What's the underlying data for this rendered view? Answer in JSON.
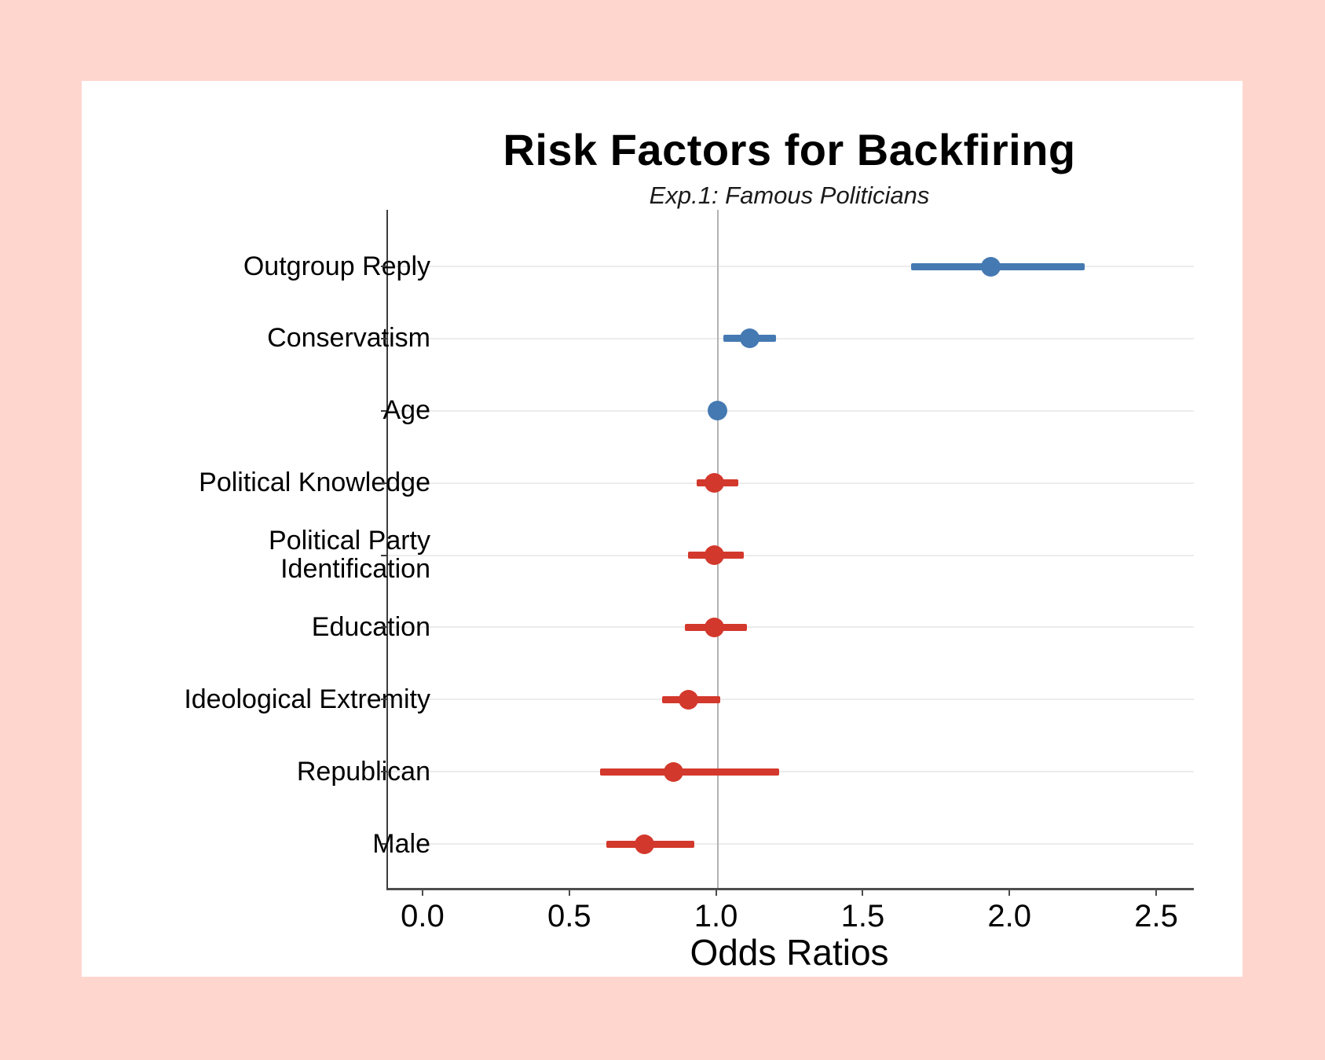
{
  "page": {
    "background_color": "#FFD6CE",
    "panel_background_color": "#FFFFFF"
  },
  "chart_data": {
    "type": "scatter",
    "variant": "forest-plot-dot-whisker",
    "title": "Risk Factors for Backfiring",
    "subtitle": "Exp.1: Famous Politicians",
    "xlabel": "Odds Ratios",
    "ylabel": "",
    "xlim": [
      -0.123,
      2.623
    ],
    "x_ticks": [
      0.0,
      0.5,
      1.0,
      1.5,
      2.0,
      2.5
    ],
    "x_tick_labels": [
      "0.0",
      "0.5",
      "1.0",
      "1.5",
      "2.0",
      "2.5"
    ],
    "reference_line_x": 1.0,
    "grid": "horizontal-only",
    "legend": "none",
    "colors": {
      "risk_increase": "#4579B2",
      "risk_decrease": "#D3382C",
      "reference_line": "#B3B3B3",
      "gridline": "#ECECEC",
      "axis": "#4D4D4D"
    },
    "series": [
      {
        "label": "Outgroup Reply",
        "odds_ratio": 1.93,
        "ci_low": 1.66,
        "ci_high": 2.25,
        "color": "#4579B2"
      },
      {
        "label": "Conservatism",
        "odds_ratio": 1.11,
        "ci_low": 1.02,
        "ci_high": 1.2,
        "color": "#4579B2"
      },
      {
        "label": "Age",
        "odds_ratio": 1.0,
        "ci_low": 0.99,
        "ci_high": 1.01,
        "color": "#4579B2"
      },
      {
        "label": "Political Knowledge",
        "odds_ratio": 0.99,
        "ci_low": 0.93,
        "ci_high": 1.07,
        "color": "#D3382C"
      },
      {
        "label": "Political Party Identification",
        "odds_ratio": 0.99,
        "ci_low": 0.9,
        "ci_high": 1.09,
        "color": "#D3382C"
      },
      {
        "label": "Education",
        "odds_ratio": 0.99,
        "ci_low": 0.89,
        "ci_high": 1.1,
        "color": "#D3382C"
      },
      {
        "label": "Ideological Extremity",
        "odds_ratio": 0.9,
        "ci_low": 0.81,
        "ci_high": 1.01,
        "color": "#D3382C"
      },
      {
        "label": "Republican",
        "odds_ratio": 0.85,
        "ci_low": 0.6,
        "ci_high": 1.21,
        "color": "#D3382C"
      },
      {
        "label": "Male",
        "odds_ratio": 0.75,
        "ci_low": 0.62,
        "ci_high": 0.92,
        "color": "#D3382C"
      }
    ]
  }
}
